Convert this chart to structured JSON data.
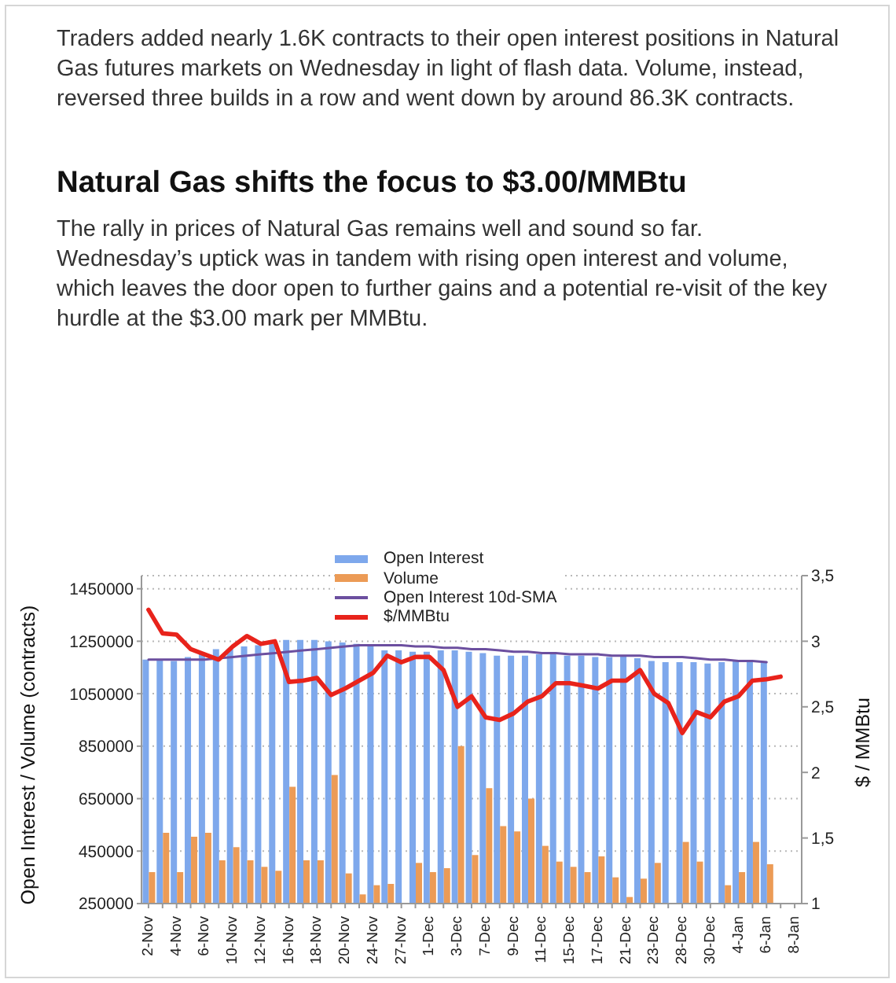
{
  "chart_data": {
    "type": "bar",
    "title": "Natural Gas shifts the focus to $3.00/MMBtu",
    "subtitle": "The rally in prices of Natural Gas remains well and sound so far. Wednesday’s uptick was in tandem with rising open interest and volume, which leaves the door open to further gains and a potential re-visit of the key hurdle at the $3.00 mark per MMBtu.",
    "annotations": [
      "Traders added nearly 1.6K contracts to their open interest positions in Natural Gas futures markets on Wednesday in light of flash data. Volume, instead, reversed three builds in a row and went down by around 86.3K contracts."
    ],
    "ylabel": "Open Interest / Volume (contracts)",
    "y2label": "$ / MMBtu",
    "categories": [
      "2-Nov",
      null,
      "4-Nov",
      null,
      "6-Nov",
      null,
      "10-Nov",
      null,
      "12-Nov",
      null,
      "16-Nov",
      null,
      "18-Nov",
      null,
      "20-Nov",
      null,
      "24-Nov",
      null,
      "27-Nov",
      null,
      "1-Dec",
      null,
      "3-Dec",
      null,
      "7-Dec",
      null,
      "9-Dec",
      null,
      "11-Dec",
      null,
      "15-Dec",
      null,
      "17-Dec",
      null,
      "21-Dec",
      null,
      "23-Dec",
      null,
      "28-Dec",
      null,
      "30-Dec",
      null,
      "4-Jan",
      null,
      "6-Jan",
      null,
      "8-Jan"
    ],
    "series": [
      {
        "name": "Open Interest",
        "color": "#7ea8ec",
        "values": [
          1180000,
          1180000,
          1175000,
          1190000,
          1200000,
          1220000,
          1220000,
          1230000,
          1235000,
          1240000,
          1255000,
          1255000,
          1255000,
          1250000,
          1245000,
          1240000,
          1230000,
          1215000,
          1215000,
          1210000,
          1210000,
          1215000,
          1215000,
          1210000,
          1205000,
          1195000,
          1195000,
          1195000,
          1200000,
          1200000,
          1195000,
          1195000,
          1190000,
          1190000,
          1195000,
          1185000,
          1175000,
          1170000,
          1170000,
          1170000,
          1165000,
          1170000,
          1175000,
          1170000,
          1170000,
          null,
          null
        ]
      },
      {
        "name": "Volume",
        "color": "#ec9b56",
        "values": [
          370000,
          520000,
          370000,
          505000,
          520000,
          415000,
          465000,
          415000,
          390000,
          375000,
          695000,
          415000,
          415000,
          740000,
          365000,
          285000,
          320000,
          325000,
          null,
          405000,
          370000,
          385000,
          850000,
          435000,
          690000,
          545000,
          525000,
          650000,
          470000,
          410000,
          390000,
          370000,
          430000,
          350000,
          275000,
          345000,
          405000,
          null,
          485000,
          410000,
          null,
          320000,
          370000,
          485000,
          400000,
          null,
          null
        ]
      },
      {
        "name": "Open Interest 10d-SMA",
        "type": "line",
        "color": "#6c4f9f",
        "values": [
          1180000,
          1180000,
          1180000,
          1180000,
          1180000,
          1185000,
          1190000,
          1195000,
          1200000,
          1205000,
          1210000,
          1215000,
          1220000,
          1225000,
          1230000,
          1235000,
          1235000,
          1235000,
          1235000,
          1230000,
          1230000,
          1225000,
          1225000,
          1220000,
          1220000,
          1215000,
          1210000,
          1210000,
          1205000,
          1205000,
          1200000,
          1200000,
          1200000,
          1195000,
          1195000,
          1195000,
          1190000,
          1190000,
          1190000,
          1185000,
          1180000,
          1180000,
          1175000,
          1175000,
          1170000,
          null,
          null
        ]
      },
      {
        "name": "$/MMBtu",
        "type": "line",
        "axis": "y2",
        "color": "#e8231b",
        "values": [
          3.24,
          3.06,
          3.05,
          2.94,
          2.9,
          2.86,
          2.96,
          3.04,
          2.98,
          3,
          2.69,
          2.7,
          2.72,
          2.59,
          2.64,
          2.7,
          2.76,
          2.89,
          2.84,
          2.88,
          2.88,
          2.78,
          2.5,
          2.58,
          2.42,
          2.4,
          2.45,
          2.54,
          2.58,
          2.68,
          2.68,
          2.66,
          2.64,
          2.7,
          2.7,
          2.78,
          2.6,
          2.53,
          2.3,
          2.46,
          2.42,
          2.54,
          2.58,
          2.7,
          2.71,
          2.73,
          null
        ]
      }
    ],
    "ylim": [
      250000,
      1500000
    ],
    "yticks": [
      250000,
      450000,
      650000,
      850000,
      1050000,
      1250000,
      1450000
    ],
    "y2lim": [
      1,
      3.5
    ],
    "y2ticks": [
      1,
      {
        "value": 1.5,
        "label": "1,5"
      },
      2,
      {
        "value": 2.5,
        "label": "2,5"
      },
      3,
      {
        "value": 3.5,
        "label": "3,5"
      }
    ],
    "grid": "y",
    "legend": "top",
    "marker": "none",
    "line_style": "solid"
  }
}
